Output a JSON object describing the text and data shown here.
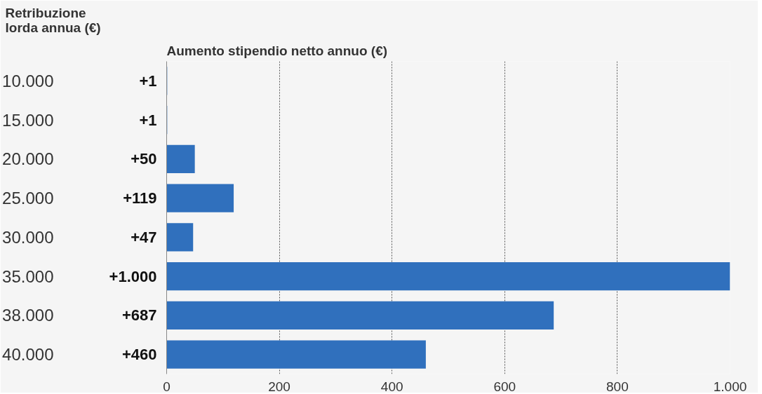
{
  "chart_data": {
    "type": "bar",
    "orientation": "horizontal",
    "ylabel": "Retribuzione\nlorda annua (€)",
    "xlabel": "Aumento stipendio netto annuo (€)",
    "categories": [
      "10.000",
      "15.000",
      "20.000",
      "25.000",
      "30.000",
      "35.000",
      "38.000",
      "40.000"
    ],
    "values": [
      1,
      1,
      50,
      119,
      47,
      1000,
      687,
      460
    ],
    "value_labels": [
      "+1",
      "+1",
      "+50",
      "+119",
      "+47",
      "+1.000",
      "+687",
      "+460"
    ],
    "color": "#3070bd",
    "xlim": [
      0,
      1000
    ],
    "xticks": [
      0,
      200,
      400,
      600,
      800,
      {
        "value": 1000,
        "label": "1.000"
      }
    ],
    "grid": "x"
  }
}
